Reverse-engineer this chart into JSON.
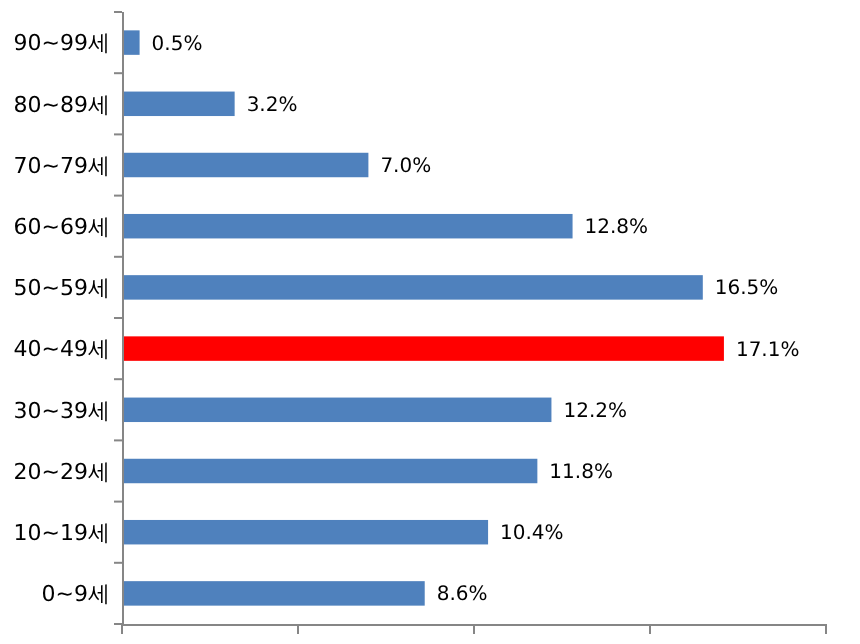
{
  "chart_data": {
    "type": "bar",
    "orientation": "horizontal",
    "categories": [
      "90~99세",
      "80~89세",
      "70~79세",
      "60~69세",
      "50~59세",
      "40~49세",
      "30~39세",
      "20~29세",
      "10~19세",
      "0~9세"
    ],
    "values": [
      0.5,
      3.2,
      7.0,
      12.8,
      16.5,
      17.1,
      12.2,
      11.8,
      10.4,
      8.6
    ],
    "colors": [
      "#4f81bd",
      "#4f81bd",
      "#4f81bd",
      "#4f81bd",
      "#4f81bd",
      "#ff0000",
      "#4f81bd",
      "#4f81bd",
      "#4f81bd",
      "#4f81bd"
    ],
    "value_labels": [
      "0.5%",
      "3.2%",
      "7.0%",
      "12.8%",
      "16.5%",
      "17.1%",
      "12.2%",
      "11.8%",
      "10.4%",
      "8.6%"
    ],
    "xlim": [
      0,
      20
    ],
    "xticks": [
      {
        "value": 0,
        "label": null
      },
      {
        "value": 5,
        "label": null
      },
      {
        "value": 10,
        "label": null
      },
      {
        "value": 15,
        "label": null
      },
      {
        "value": 20,
        "label": null
      }
    ],
    "tick_labels": "y"
  }
}
